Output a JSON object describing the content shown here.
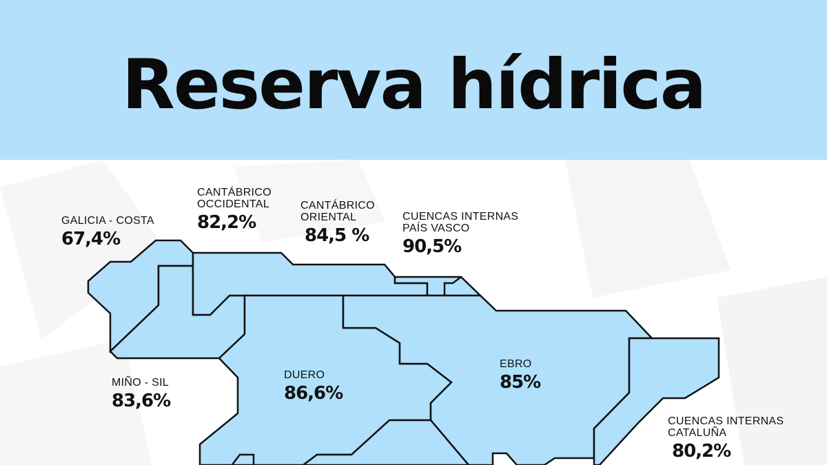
{
  "title": "Reserva hídrica",
  "colors": {
    "header": "#b4e0fb",
    "region_fill": "#b0e0fc",
    "border": "#111111"
  },
  "regions": [
    {
      "name": "GALICIA - COSTA",
      "value": "67,4%"
    },
    {
      "name_lines": [
        "CANTÁBRICO",
        "OCCIDENTAL"
      ],
      "value": "82,2%"
    },
    {
      "name_lines": [
        "CANTÁBRICO",
        "ORIENTAL"
      ],
      "value": "84,5 %"
    },
    {
      "name_lines": [
        "CUENCAS INTERNAS",
        "PAÍS VASCO"
      ],
      "value": "90,5%"
    },
    {
      "name": "MIÑO - SIL",
      "value": "83,6%"
    },
    {
      "name": "DUERO",
      "value": "86,6%"
    },
    {
      "name": "EBRO",
      "value": "85%"
    },
    {
      "name_lines": [
        "CUENCAS INTERNAS",
        "CATALUÑA"
      ],
      "value": "80,2%"
    }
  ]
}
